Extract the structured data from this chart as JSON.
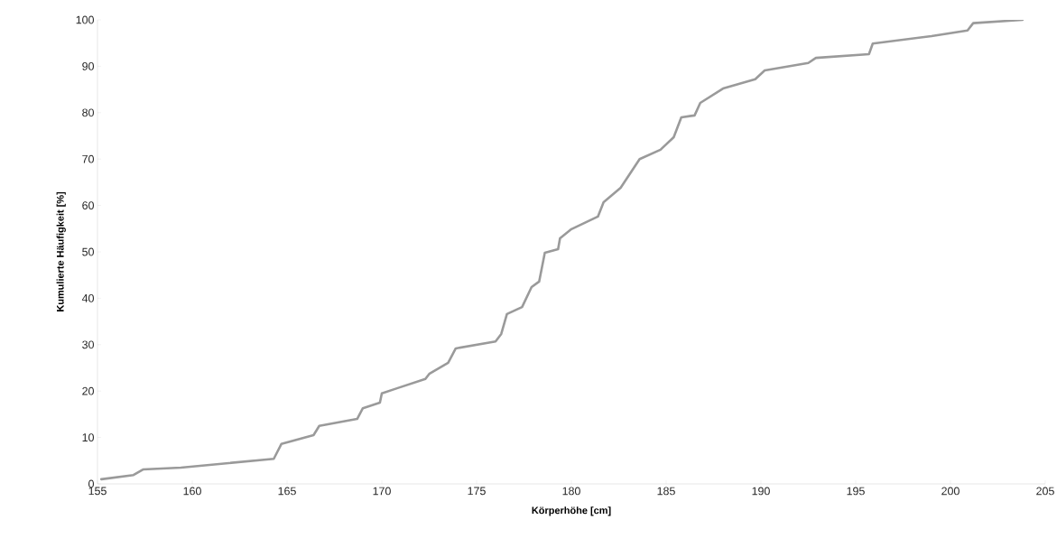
{
  "chart_data": {
    "type": "line",
    "xlabel": "Körperhöhe [cm]",
    "ylabel": "Kumulierte Häufigkeit [%]",
    "xlim": [
      155,
      205
    ],
    "xticks": [
      155,
      160,
      165,
      170,
      175,
      180,
      185,
      190,
      195,
      200,
      205
    ],
    "ylim": [
      0,
      100
    ],
    "yticks": [
      0,
      10,
      20,
      30,
      40,
      50,
      60,
      70,
      80,
      90,
      100
    ],
    "grid": false,
    "legend": false,
    "marker": "none",
    "line_style": "solid",
    "series": [
      {
        "color": "#9a9a9a",
        "x": [
          155.2,
          156.9,
          157.4,
          159.4,
          164.3,
          164.7,
          166.4,
          166.7,
          168.7,
          169.0,
          169.9,
          170.0,
          170.8,
          172.3,
          172.5,
          173.5,
          173.9,
          176.0,
          176.3,
          176.6,
          177.4,
          177.9,
          178.3,
          178.6,
          179.3,
          179.4,
          180.0,
          181.4,
          181.7,
          182.6,
          183.6,
          184.7,
          185.4,
          185.8,
          186.5,
          186.8,
          188.0,
          189.7,
          190.2,
          192.5,
          192.9,
          195.7,
          195.9,
          199.0,
          200.9,
          201.2,
          203.8
        ],
        "values": [
          1.0,
          1.9,
          3.1,
          3.5,
          5.4,
          8.6,
          10.5,
          12.5,
          14.0,
          16.3,
          17.5,
          19.5,
          20.6,
          22.6,
          23.7,
          26.1,
          29.2,
          30.7,
          32.3,
          36.6,
          38.1,
          42.4,
          43.6,
          49.8,
          50.6,
          52.9,
          54.9,
          57.6,
          60.7,
          63.8,
          70.0,
          72.0,
          74.7,
          79.0,
          79.4,
          82.1,
          85.2,
          87.2,
          89.1,
          90.7,
          91.8,
          92.6,
          94.9,
          96.5,
          97.7,
          99.3,
          100.0
        ]
      }
    ]
  }
}
